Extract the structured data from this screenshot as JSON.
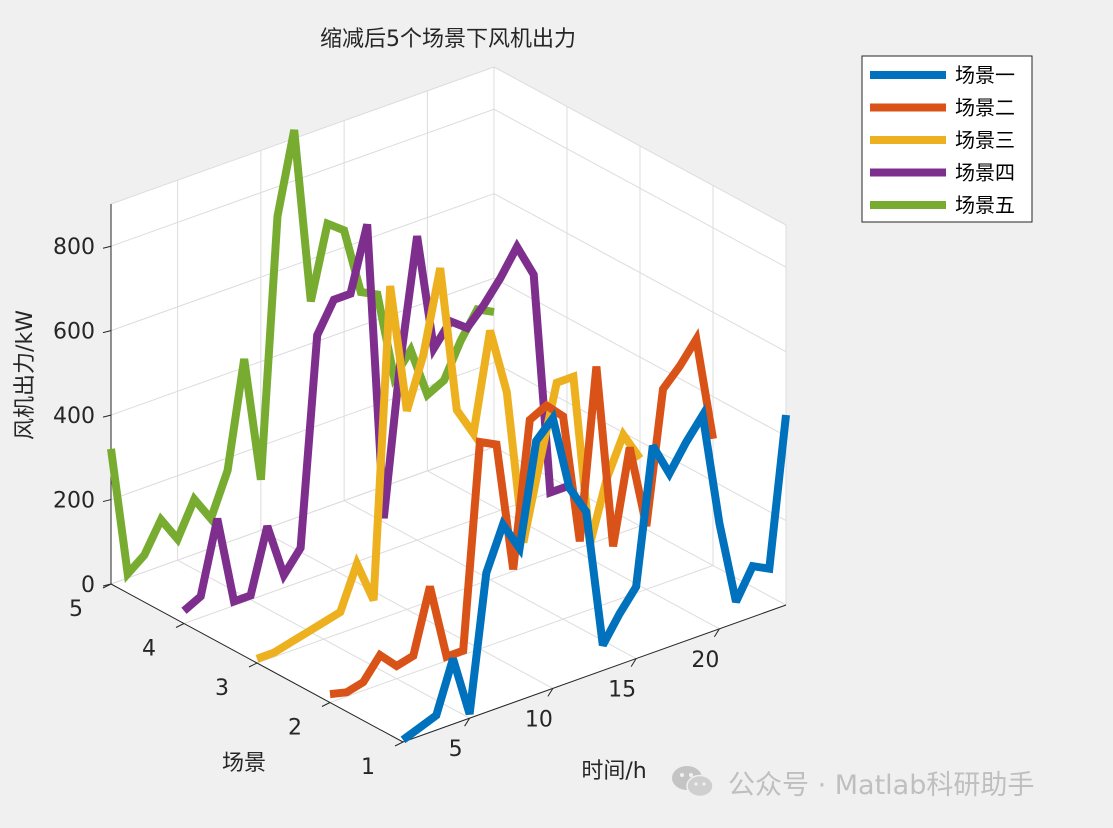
{
  "chart_data": {
    "type": "line",
    "view": "3d",
    "title": "缩减后5个场景下风机出力",
    "xlabel": "时间/h",
    "ylabel": "场景",
    "zlabel": "风机出力/kW",
    "xlim": [
      1,
      24
    ],
    "ylim": [
      1,
      5
    ],
    "zlim": [
      0,
      900
    ],
    "xticks": [
      "5",
      "10",
      "15",
      "20"
    ],
    "yticks": [
      "1",
      "2",
      "3",
      "4",
      "5"
    ],
    "zticks": [
      "0",
      "200",
      "400",
      "600",
      "800"
    ],
    "grid": true,
    "legend_position": "top-right",
    "x": [
      1,
      2,
      3,
      4,
      5,
      6,
      7,
      8,
      9,
      10,
      11,
      12,
      13,
      14,
      15,
      16,
      17,
      18,
      19,
      20,
      21,
      22,
      23,
      24
    ],
    "series": [
      {
        "name": "场景一",
        "scenario": 1,
        "color": "#0072bd",
        "values": [
          5,
          20,
          35,
          155,
          10,
          330,
          430,
          360,
          600,
          640,
          460,
          390,
          60,
          120,
          170,
          490,
          410,
          470,
          520,
          250,
          50,
          120,
          100,
          450
        ]
      },
      {
        "name": "场景二",
        "scenario": 2,
        "color": "#d95319",
        "values": [
          20,
          10,
          20,
          70,
          30,
          40,
          190,
          10,
          10,
          490,
          470,
          160,
          500,
          520,
          480,
          170,
          570,
          130,
          350,
          150,
          460,
          500,
          550,
          300
        ]
      },
      {
        "name": "场景三",
        "scenario": 3,
        "color": "#edb120",
        "values": [
          10,
          10,
          20,
          30,
          40,
          50,
          150,
          50,
          780,
          470,
          590,
          780,
          430,
          360,
          590,
          430,
          60,
          240,
          410,
          410,
          0,
          140,
          230,
          160
        ]
      },
      {
        "name": "场景四",
        "scenario": 4,
        "color": "#7e2f8e",
        "values": [
          30,
          50,
          220,
          10,
          10,
          160,
          30,
          80,
          570,
          640,
          640,
          790,
          80,
          440,
          720,
          440,
          490,
          460,
          500,
          550,
          610,
          530,
          0,
          0
        ]
      },
      {
        "name": "场景五",
        "scenario": 5,
        "color": "#77ac30",
        "values": [
          320,
          10,
          40,
          110,
          50,
          130,
          70,
          170,
          420,
          120,
          730,
          920,
          500,
          670,
          640,
          480,
          460,
          250,
          300,
          180,
          200,
          280,
          340,
          320
        ]
      }
    ]
  },
  "watermark": {
    "text": "公众号 · Matlab科研助手",
    "icon": "wechat-icon"
  }
}
